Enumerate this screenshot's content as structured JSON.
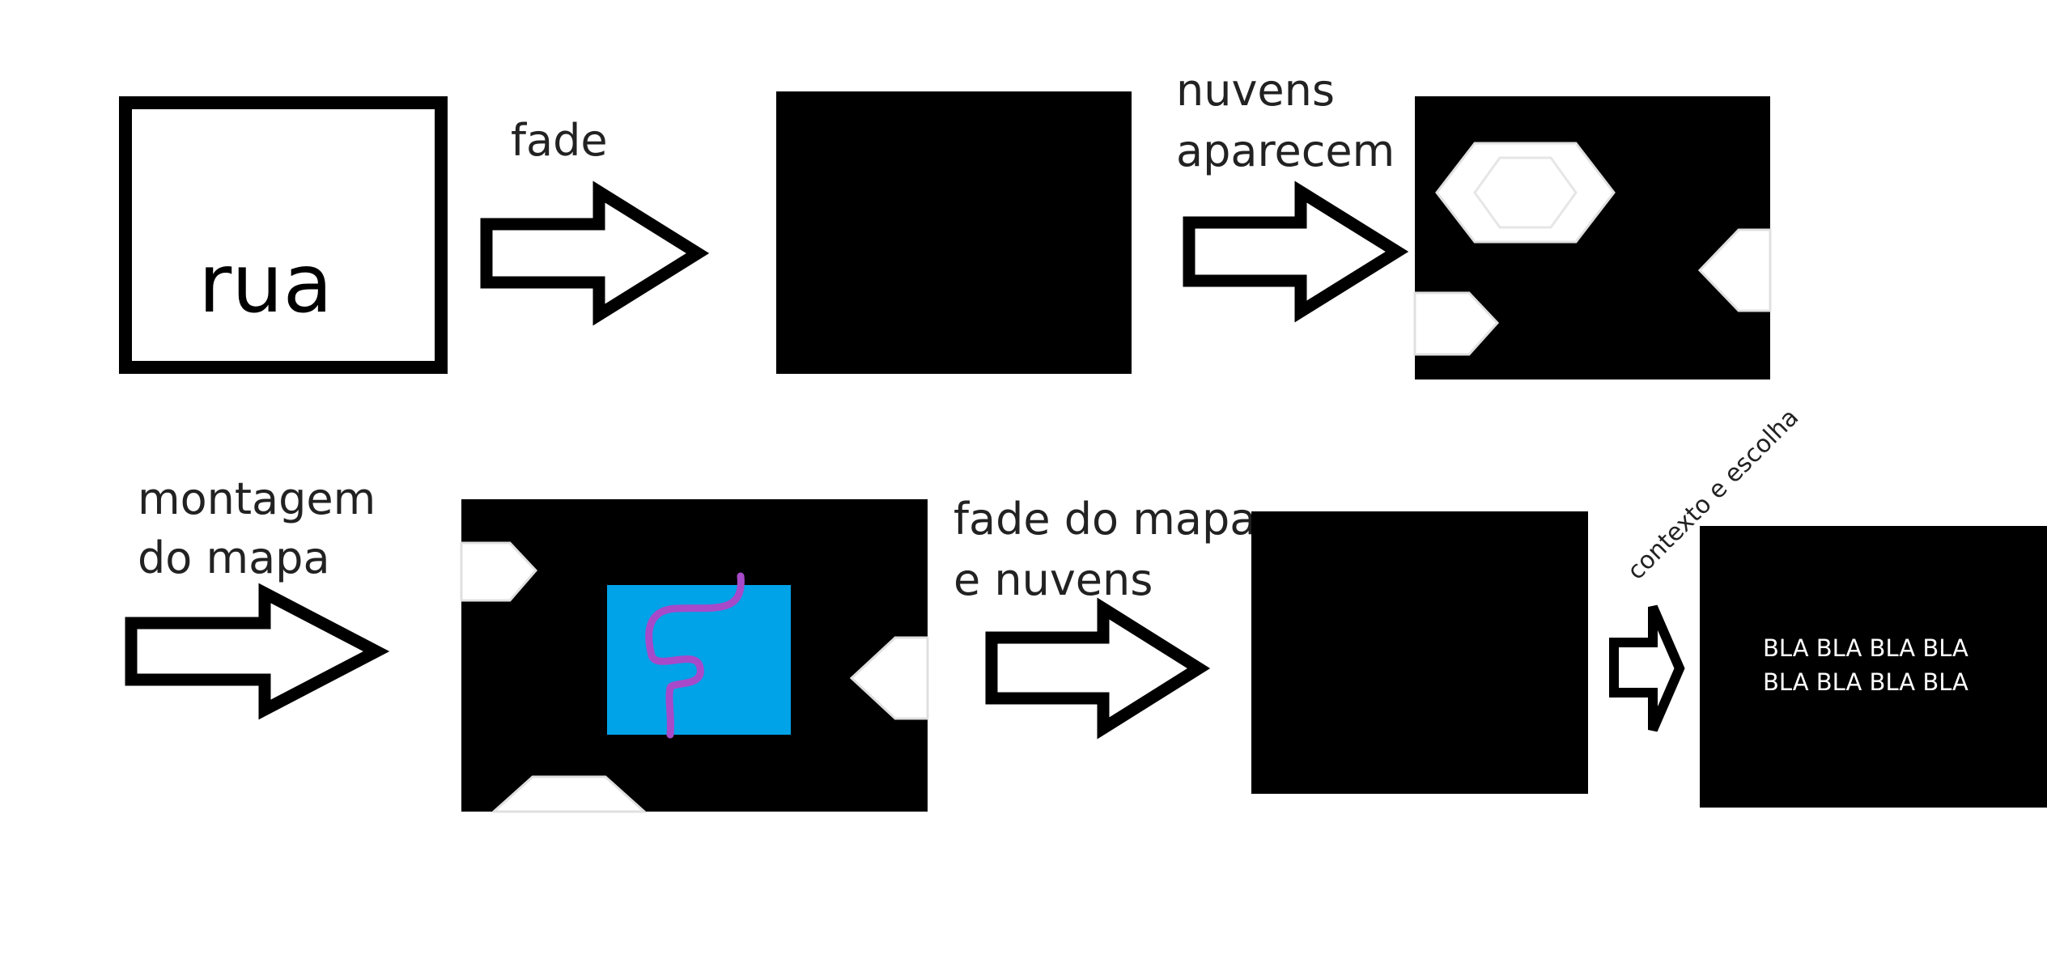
{
  "steps": {
    "street_label": "rua",
    "context_text": [
      "BLA BLA BLA BLA",
      "BLA BLA BLA BLA"
    ]
  },
  "transitions": {
    "fade": "fade",
    "clouds_appear": [
      "nuvens",
      "aparecem"
    ],
    "map_assembly": [
      "montagem",
      "do mapa"
    ],
    "map_clouds_fade": [
      "fade do mapa",
      "e nuvens"
    ],
    "context_choice": "contexto e escolha"
  },
  "colors": {
    "ink": "#000000",
    "paper": "#ffffff",
    "map_fill": "#00a2e8",
    "route": "#a64ac9",
    "cloud_edge": "#e0e0e0"
  }
}
